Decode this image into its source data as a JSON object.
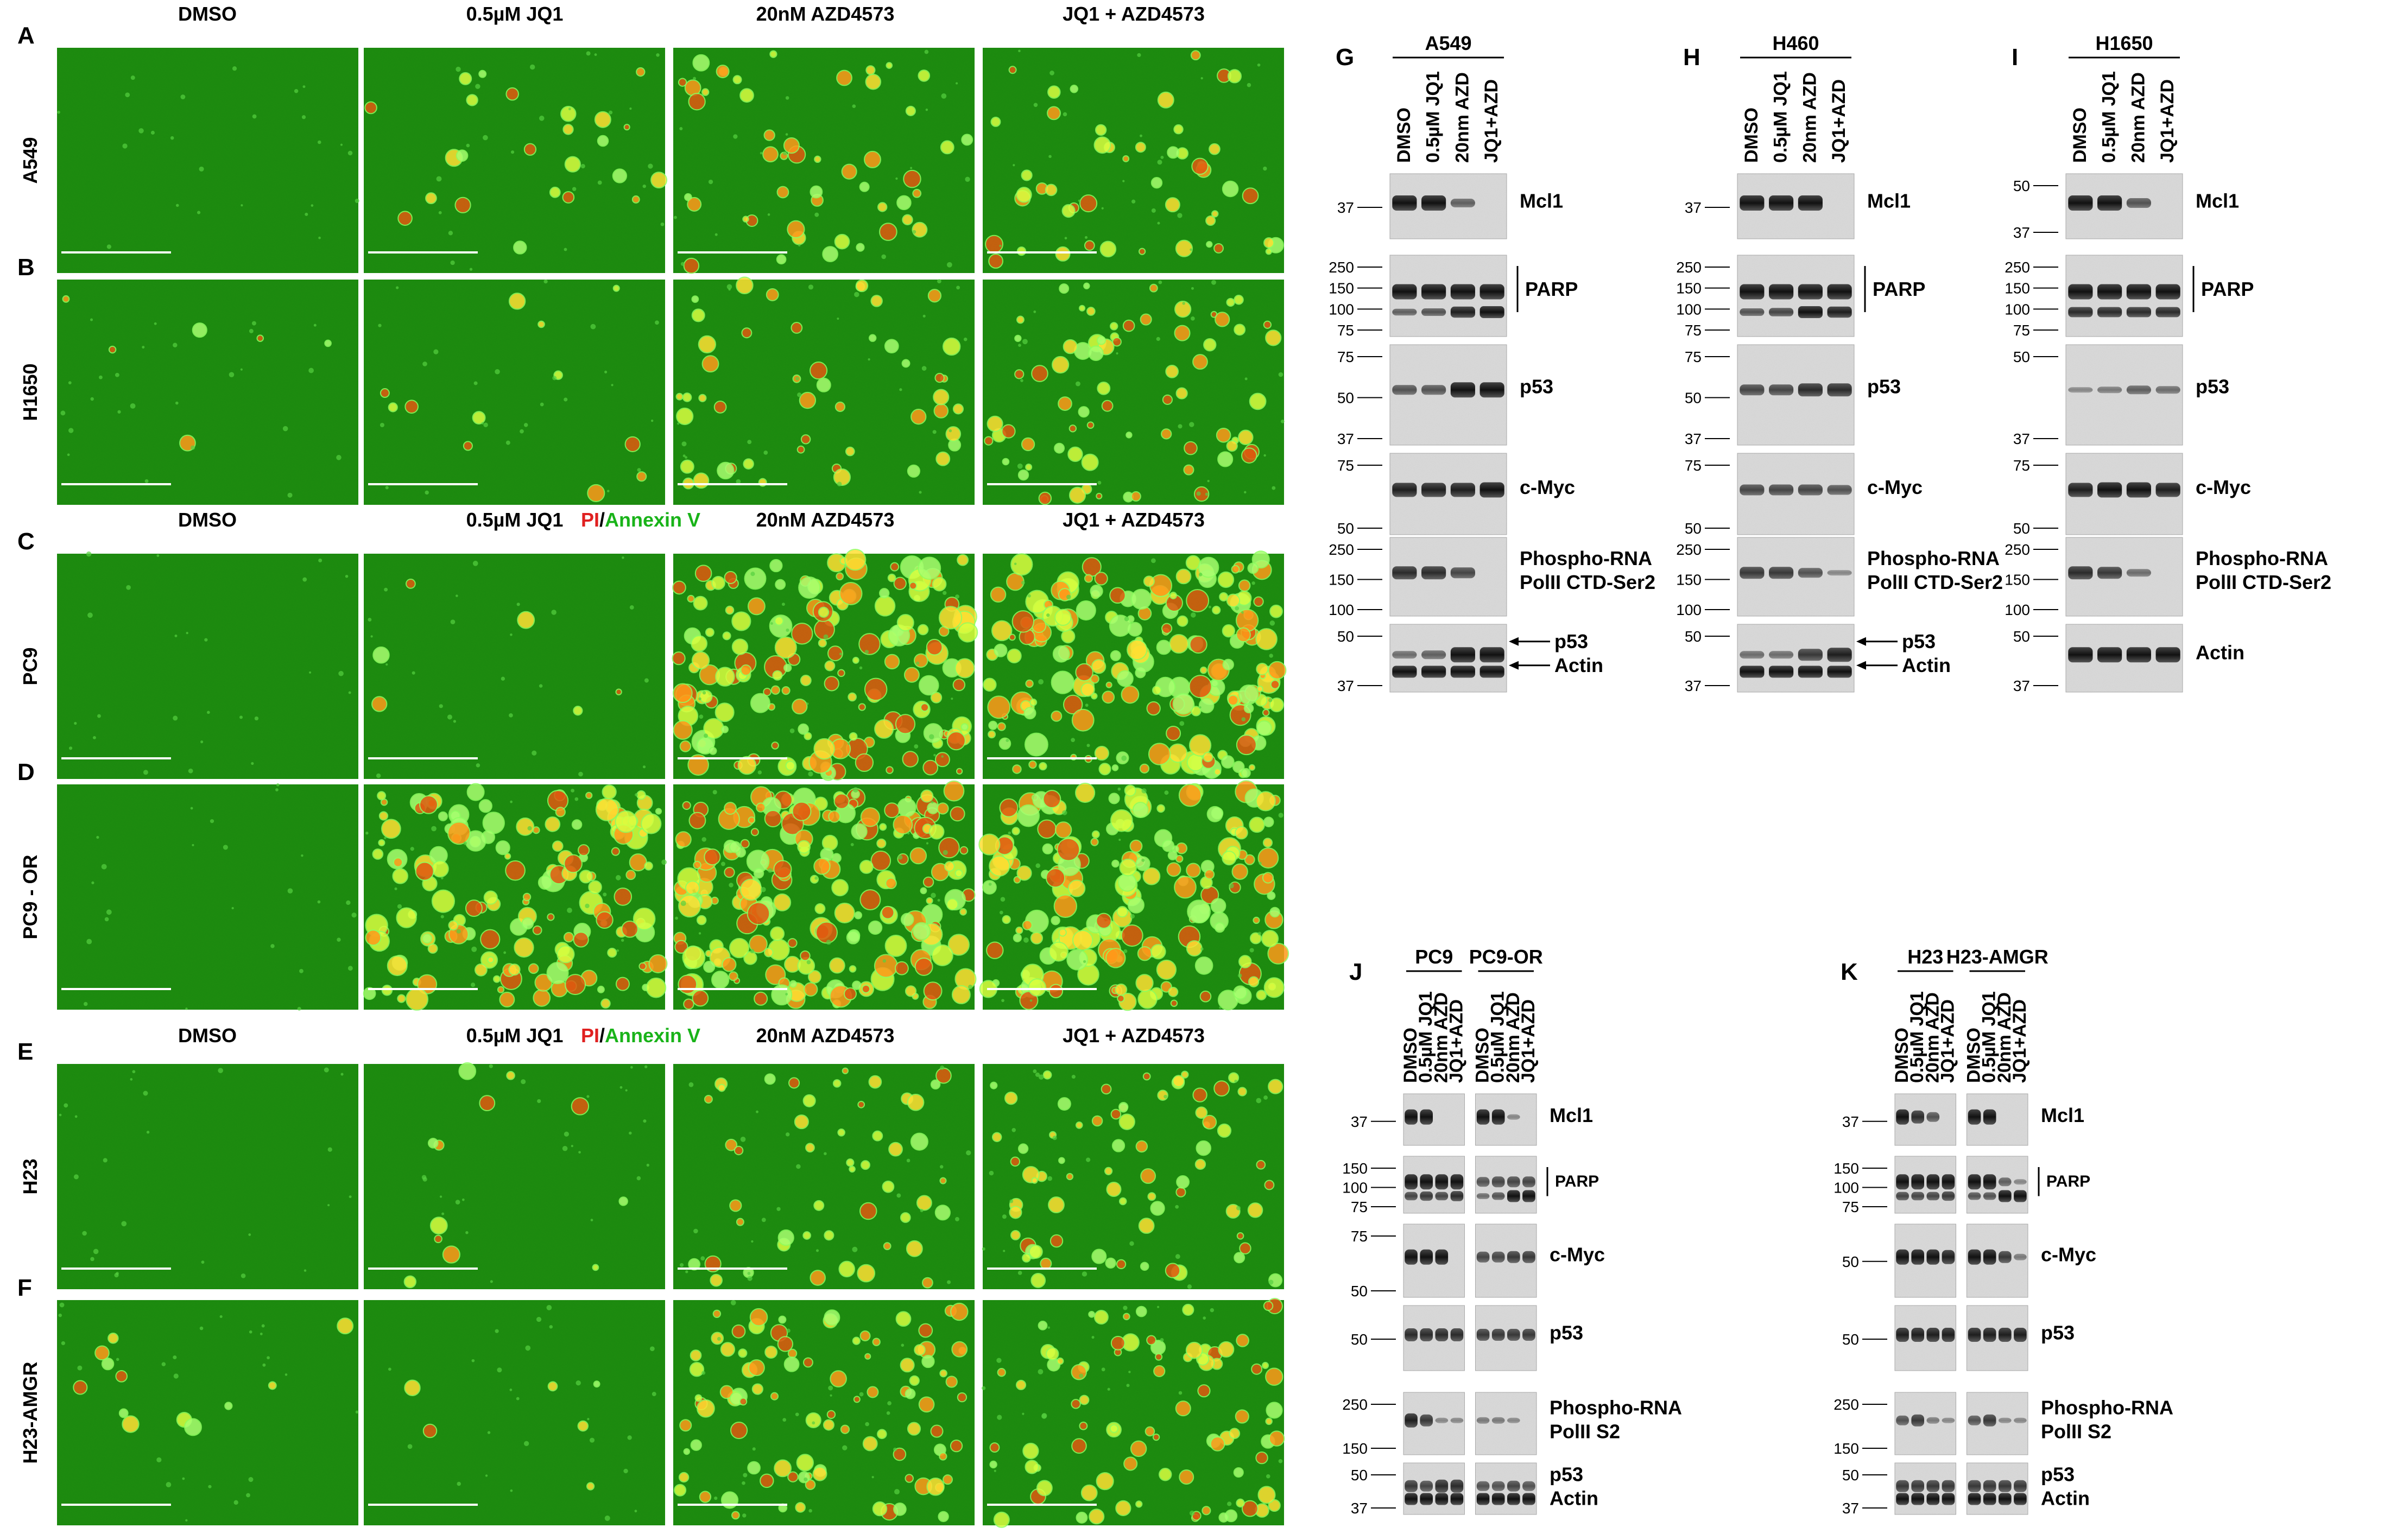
{
  "micrographs": {
    "panel_letters": [
      "A",
      "B",
      "C",
      "D",
      "E",
      "F"
    ],
    "set1": {
      "columns": [
        "DMSO",
        "0.5µM JQ1",
        "20nM AZD4573",
        "JQ1 + AZD4573"
      ],
      "rows": [
        {
          "letter": "A",
          "label": "A549"
        },
        {
          "letter": "B",
          "label": "H1650"
        }
      ]
    },
    "set2": {
      "columns": [
        "DMSO",
        "0.5µM JQ1",
        "20nM AZD4573",
        "JQ1 + AZD4573"
      ],
      "stain_pi": "PI",
      "stain_sep": "/",
      "stain_annexin": "Annexin V",
      "rows": [
        {
          "letter": "C",
          "label": "PC9"
        },
        {
          "letter": "D",
          "label": "PC9 - OR"
        }
      ]
    },
    "set3": {
      "columns": [
        "DMSO",
        "0.5µM JQ1",
        "20nM AZD4573",
        "JQ1 + AZD4573"
      ],
      "stain_pi": "PI",
      "stain_sep": "/",
      "stain_annexin": "Annexin V",
      "rows": [
        {
          "letter": "E",
          "label": "H23"
        },
        {
          "letter": "F",
          "label": "H23-AMGR"
        }
      ]
    },
    "colors": {
      "green": "#1e8f10",
      "pi_red": "#e02020",
      "annexin_green": "#19b319"
    }
  },
  "blots": {
    "G": {
      "letter": "G",
      "cell_line": "A549",
      "lanes": [
        "DMSO",
        "0.5µM JQ1",
        "20nm AZD",
        "JQ1+AZD"
      ],
      "strips": [
        {
          "mw": [
            "37"
          ],
          "labels": [
            "Mcl1"
          ]
        },
        {
          "mw": [
            "250",
            "150",
            "100",
            "75"
          ],
          "labels": [
            "PARP"
          ],
          "bracket": true
        },
        {
          "mw": [
            "75",
            "50",
            "37"
          ],
          "labels": [
            "p53"
          ]
        },
        {
          "mw": [
            "75",
            "50"
          ],
          "labels": [
            "c-Myc"
          ]
        },
        {
          "mw": [
            "250",
            "150",
            "100"
          ],
          "labels": [
            "Phospho-RNA",
            "PolII CTD-Ser2"
          ]
        },
        {
          "mw": [
            "50",
            "37"
          ],
          "labels": [
            "p53",
            "Actin"
          ],
          "arrows": true
        }
      ]
    },
    "H": {
      "letter": "H",
      "cell_line": "H460",
      "lanes": [
        "DMSO",
        "0.5µM JQ1",
        "20nm AZD",
        "JQ1+AZD"
      ],
      "strips": [
        {
          "mw": [
            "37"
          ],
          "labels": [
            "Mcl1"
          ]
        },
        {
          "mw": [
            "250",
            "150",
            "100",
            "75"
          ],
          "labels": [
            "PARP"
          ],
          "bracket": true
        },
        {
          "mw": [
            "75",
            "50",
            "37"
          ],
          "labels": [
            "p53"
          ]
        },
        {
          "mw": [
            "75",
            "50"
          ],
          "labels": [
            "c-Myc"
          ]
        },
        {
          "mw": [
            "250",
            "150",
            "100"
          ],
          "labels": [
            "Phospho-RNA",
            "PolII CTD-Ser2"
          ]
        },
        {
          "mw": [
            "50",
            "37"
          ],
          "labels": [
            "p53",
            "Actin"
          ],
          "arrows": true
        }
      ]
    },
    "I": {
      "letter": "I",
      "cell_line": "H1650",
      "lanes": [
        "DMSO",
        "0.5µM JQ1",
        "20nm AZD",
        "JQ1+AZD"
      ],
      "strips": [
        {
          "mw": [
            "50",
            "37"
          ],
          "labels": [
            "Mcl1"
          ]
        },
        {
          "mw": [
            "250",
            "150",
            "100",
            "75"
          ],
          "labels": [
            "PARP"
          ],
          "bracket": true
        },
        {
          "mw": [
            "50",
            "37"
          ],
          "labels": [
            "p53"
          ]
        },
        {
          "mw": [
            "75",
            "50"
          ],
          "labels": [
            "c-Myc"
          ]
        },
        {
          "mw": [
            "250",
            "150",
            "100"
          ],
          "labels": [
            "Phospho-RNA",
            "PolII CTD-Ser2"
          ]
        },
        {
          "mw": [
            "50",
            "37"
          ],
          "labels": [
            "Actin"
          ]
        }
      ]
    },
    "J": {
      "letter": "J",
      "cell_lines": [
        "PC9",
        "PC9-OR"
      ],
      "lanes": [
        "DMSO",
        "0.5µM JQ1",
        "20nm AZD",
        "JQ1+AZD",
        "DMSO",
        "0.5µM JQ1",
        "20nm AZD",
        "JQ1+AZD"
      ],
      "strips": [
        {
          "mw": [
            "37"
          ],
          "labels": [
            "Mcl1"
          ]
        },
        {
          "mw": [
            "150",
            "100",
            "75"
          ],
          "labels": [
            "PARP"
          ],
          "bracket": true
        },
        {
          "mw": [
            "75",
            "50"
          ],
          "labels": [
            "c-Myc"
          ]
        },
        {
          "mw": [
            "50"
          ],
          "labels": [
            "p53"
          ]
        },
        {
          "mw": [
            "250",
            "150"
          ],
          "labels": [
            "Phospho-RNA",
            "PolII S2"
          ]
        },
        {
          "mw": [
            "50",
            "37"
          ],
          "labels": [
            "p53",
            "Actin"
          ]
        }
      ]
    },
    "K": {
      "letter": "K",
      "cell_lines": [
        "H23",
        "H23-AMGR"
      ],
      "lanes": [
        "DMSO",
        "0.5µM JQ1",
        "20nm AZD",
        "JQ1+AZD",
        "DMSO",
        "0.5µM JQ1",
        "20nm AZD",
        "JQ1+AZD"
      ],
      "strips": [
        {
          "mw": [
            "37"
          ],
          "labels": [
            "Mcl1"
          ]
        },
        {
          "mw": [
            "150",
            "100",
            "75"
          ],
          "labels": [
            "PARP"
          ],
          "bracket": true
        },
        {
          "mw": [
            "50"
          ],
          "labels": [
            "c-Myc"
          ]
        },
        {
          "mw": [
            "50"
          ],
          "labels": [
            "p53"
          ]
        },
        {
          "mw": [
            "250",
            "150"
          ],
          "labels": [
            "Phospho-RNA",
            "PolII S2"
          ]
        },
        {
          "mw": [
            "50",
            "37"
          ],
          "labels": [
            "p53",
            "Actin"
          ]
        }
      ]
    }
  }
}
